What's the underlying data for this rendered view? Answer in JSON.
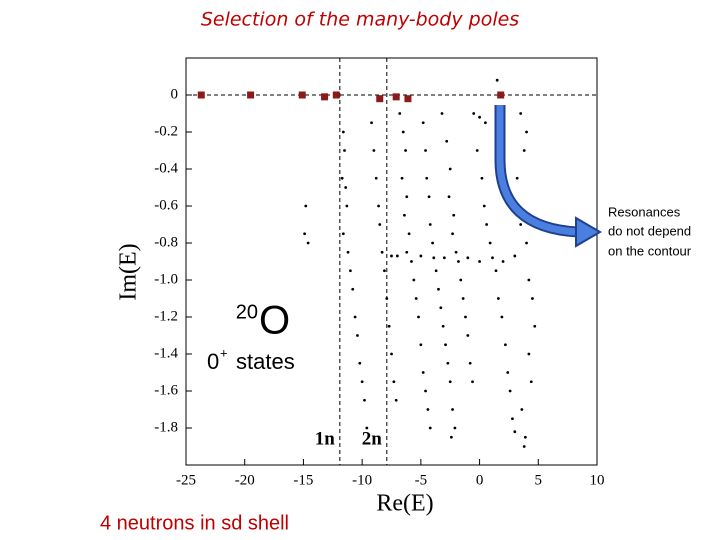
{
  "chart_data": {
    "type": "scatter",
    "title": "Selection of the many-body poles",
    "x_label": "Re(E)",
    "y_label": "Im(E)",
    "xlim": [
      -25,
      10
    ],
    "ylim": [
      -2.0,
      0.2
    ],
    "xticks": [
      -25,
      -20,
      -15,
      -10,
      -5,
      0,
      5,
      10
    ],
    "yticks": [
      0,
      -0.2,
      -0.4,
      -0.6,
      -0.8,
      {
        "value": -1,
        "label": "-1.0"
      },
      -1.2,
      -1.4,
      -1.6,
      -1.8
    ],
    "hline": 0,
    "thresholds": [
      {
        "x": -11.9,
        "label": "1n"
      },
      {
        "x": -7.9,
        "label": "2n"
      }
    ],
    "series": [
      {
        "marker": "square",
        "color": "#8b1a1a",
        "x": [
          -23.7,
          -19.5,
          -15.1,
          -13.2,
          -12.2,
          -8.5,
          -7.1,
          -6.1,
          1.8
        ],
        "y": [
          0,
          0,
          0,
          -0.01,
          0,
          -0.02,
          -0.01,
          -0.02,
          0
        ]
      },
      {
        "marker": "dot",
        "color": "#000000",
        "x": [
          -11.6,
          -11.5,
          -11.7,
          -11.4,
          -11.3,
          -11.6,
          -11.2,
          -11.0,
          -10.8,
          -10.6,
          -10.4,
          -10.2,
          -10.0,
          -9.8,
          -9.6,
          -14.8,
          -14.9,
          -14.6,
          -9.2,
          -9.0,
          -8.8,
          -8.6,
          -8.5,
          -8.3,
          -8.1,
          -7.9,
          -7.7,
          -7.5,
          -7.3,
          -7.1,
          -6.8,
          -6.5,
          -6.3,
          -6.6,
          -6.2,
          -6.4,
          -6.0,
          -6.2,
          -5.8,
          -5.6,
          -5.4,
          -5.2,
          -5.0,
          -4.8,
          -4.6,
          -4.4,
          -4.2,
          -4.8,
          -4.6,
          -4.5,
          -4.3,
          -4.2,
          -4.0,
          -3.9,
          -3.7,
          -3.5,
          -3.3,
          -3.1,
          -2.9,
          -2.7,
          -2.5,
          -2.3,
          -2.1,
          -2.4,
          -3.2,
          -2.8,
          -2.5,
          -2.6,
          -2.2,
          -2.3,
          -2.0,
          -1.8,
          -1.6,
          -1.4,
          -1.2,
          -1.0,
          -0.8,
          -0.6,
          -0.5,
          0,
          0.5,
          -0.2,
          0.2,
          0.4,
          0.6,
          0.9,
          1.1,
          1.4,
          1.6,
          1.9,
          2.2,
          2.4,
          2.6,
          2.8,
          3.0,
          3.5,
          4.0,
          3.8,
          3.2,
          3.5,
          4.0,
          4.2,
          4.5,
          4.7,
          4.2,
          4.4,
          3.6,
          3.9,
          3.8,
          -7.5,
          -7.0,
          -5.0,
          -3.0,
          -1.0,
          0,
          2.0,
          3.0,
          1.5
        ],
        "y": [
          -0.2,
          -0.3,
          -0.45,
          -0.5,
          -0.6,
          -0.75,
          -0.85,
          -0.95,
          -1.05,
          -1.2,
          -1.3,
          -1.45,
          -1.55,
          -1.65,
          -1.8,
          -0.6,
          -0.75,
          -0.8,
          -0.15,
          -0.3,
          -0.45,
          -0.6,
          -0.7,
          -0.85,
          -0.95,
          -1.1,
          -1.25,
          -1.4,
          -1.55,
          -1.65,
          -0.1,
          -0.2,
          -0.3,
          -0.45,
          -0.55,
          -0.65,
          -0.75,
          -0.85,
          -0.9,
          -1.0,
          -1.1,
          -1.2,
          -1.35,
          -1.5,
          -1.6,
          -1.7,
          -1.8,
          -0.15,
          -0.3,
          -0.45,
          -0.55,
          -0.7,
          -0.8,
          -0.88,
          -0.95,
          -1.05,
          -1.15,
          -1.25,
          -1.35,
          -1.45,
          -1.55,
          -1.7,
          -1.8,
          -1.85,
          -0.1,
          -0.25,
          -0.4,
          -0.55,
          -0.65,
          -0.75,
          -0.85,
          -0.9,
          -1.0,
          -1.1,
          -1.2,
          -1.3,
          -1.45,
          -1.55,
          -0.1,
          -0.12,
          -0.15,
          -0.3,
          -0.45,
          -0.6,
          -0.7,
          -0.8,
          -0.88,
          -0.95,
          -1.1,
          -1.2,
          -1.35,
          -1.5,
          -1.6,
          -1.75,
          -1.82,
          -0.1,
          -0.2,
          -0.3,
          -0.45,
          -0.7,
          -0.8,
          -1.0,
          -1.1,
          -1.25,
          -1.4,
          -1.55,
          -1.7,
          -1.85,
          -1.9,
          -0.87,
          -0.87,
          -0.87,
          -0.88,
          -0.88,
          -0.9,
          -0.9,
          -0.87,
          0.08
        ]
      }
    ],
    "nucleus": {
      "mass": "20",
      "symbol": "O"
    },
    "states": {
      "spin": "0",
      "parity": "+",
      "text": "states"
    },
    "note": [
      "Resonances",
      "do not depend",
      "on the contour"
    ],
    "footer": "4 neutrons in sd shell"
  }
}
